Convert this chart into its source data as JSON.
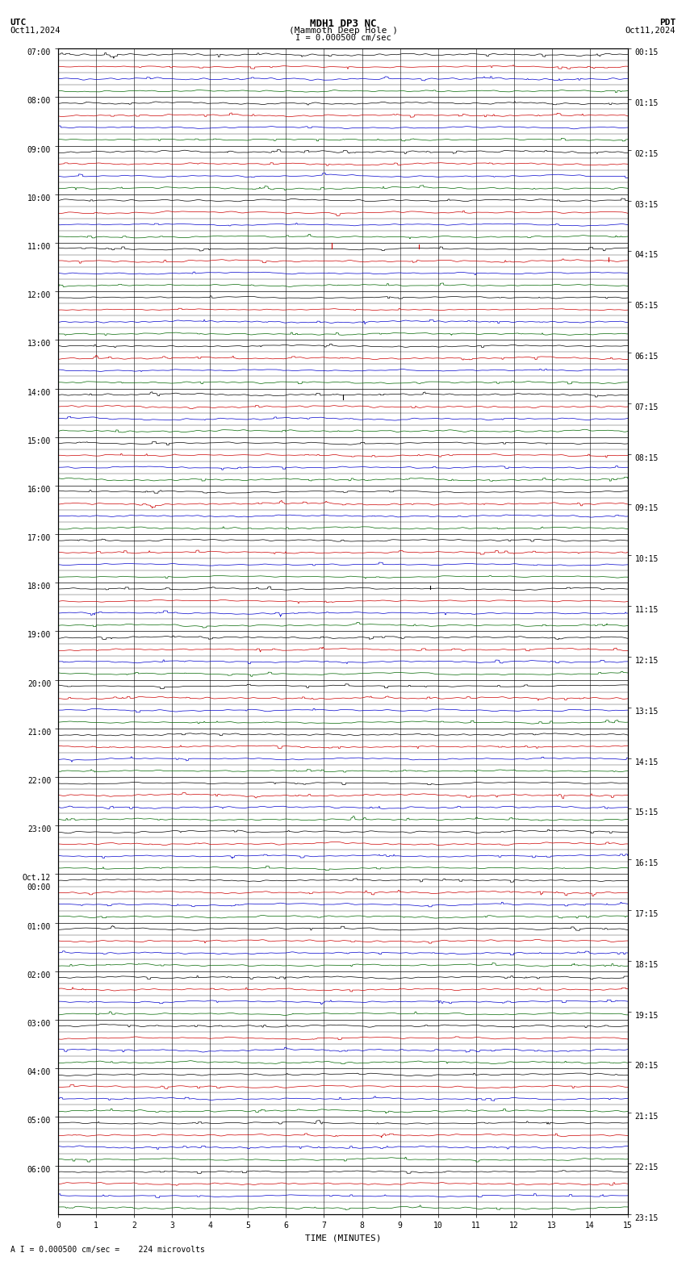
{
  "title_line1": "MDH1 DP3 NC",
  "title_line2": "(Mammoth Deep Hole )",
  "scale_label": "I = 0.000500 cm/sec",
  "utc_label": "UTC",
  "pdt_label": "PDT",
  "date_left": "Oct11,2024",
  "date_right": "Oct11,2024",
  "xlabel": "TIME (MINUTES)",
  "bottom_note": "A I = 0.000500 cm/sec =    224 microvolts",
  "xmin": 0,
  "xmax": 15,
  "num_rows": 96,
  "trace_colors": [
    "#000000",
    "#cc0000",
    "#0000cc",
    "#006600"
  ],
  "bg_color": "#ffffff",
  "grid_color": "#000000",
  "utc_times": [
    "07:00",
    "",
    "",
    "",
    "08:00",
    "",
    "",
    "",
    "09:00",
    "",
    "",
    "",
    "10:00",
    "",
    "",
    "",
    "11:00",
    "",
    "",
    "",
    "12:00",
    "",
    "",
    "",
    "13:00",
    "",
    "",
    "",
    "14:00",
    "",
    "",
    "",
    "15:00",
    "",
    "",
    "",
    "16:00",
    "",
    "",
    "",
    "17:00",
    "",
    "",
    "",
    "18:00",
    "",
    "",
    "",
    "19:00",
    "",
    "",
    "",
    "20:00",
    "",
    "",
    "",
    "21:00",
    "",
    "",
    "",
    "22:00",
    "",
    "",
    "",
    "23:00",
    "",
    "",
    "",
    "Oct.12",
    "00:00",
    "",
    "",
    "01:00",
    "",
    "",
    "",
    "02:00",
    "",
    "",
    "",
    "03:00",
    "",
    "",
    "",
    "04:00",
    "",
    "",
    "",
    "05:00",
    "",
    "",
    "",
    "06:00",
    "",
    "",
    ""
  ],
  "pdt_times": [
    "00:15",
    "",
    "",
    "",
    "01:15",
    "",
    "",
    "",
    "02:15",
    "",
    "",
    "",
    "03:15",
    "",
    "",
    "",
    "04:15",
    "",
    "",
    "",
    "05:15",
    "",
    "",
    "",
    "06:15",
    "",
    "",
    "",
    "07:15",
    "",
    "",
    "",
    "08:15",
    "",
    "",
    "",
    "09:15",
    "",
    "",
    "",
    "10:15",
    "",
    "",
    "",
    "11:15",
    "",
    "",
    "",
    "12:15",
    "",
    "",
    "",
    "13:15",
    "",
    "",
    "",
    "14:15",
    "",
    "",
    "",
    "15:15",
    "",
    "",
    "",
    "16:15",
    "",
    "",
    "",
    "17:15",
    "",
    "",
    "",
    "18:15",
    "",
    "",
    "",
    "19:15",
    "",
    "",
    "",
    "20:15",
    "",
    "",
    "",
    "21:15",
    "",
    "",
    "",
    "22:15",
    "",
    "",
    "",
    "23:15",
    "",
    "",
    ""
  ]
}
